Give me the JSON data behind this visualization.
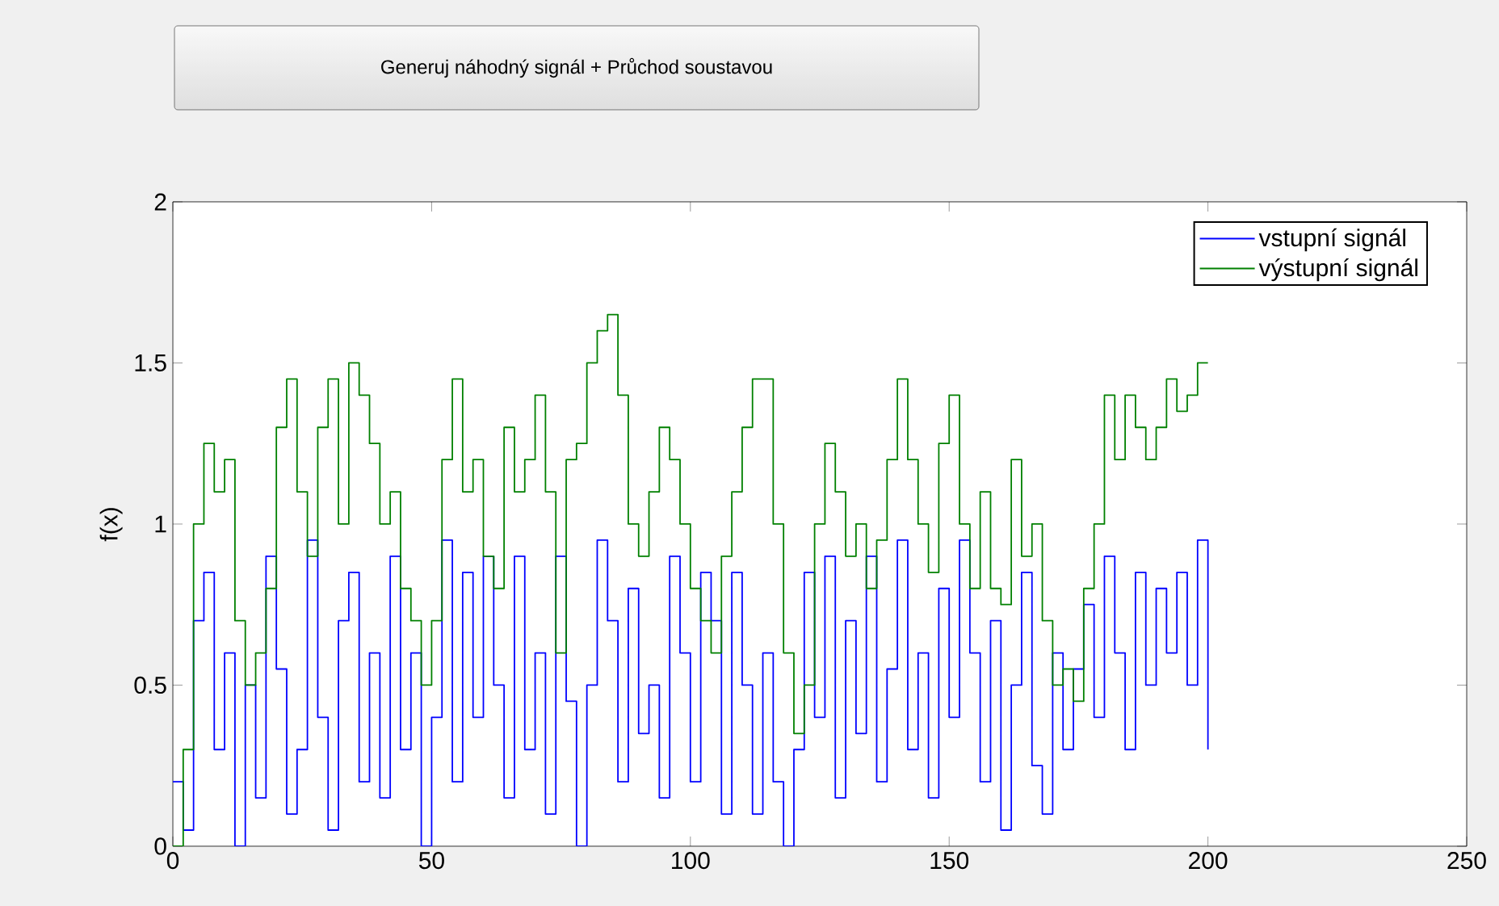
{
  "chart_data": {
    "type": "step",
    "title": "Generuj náhodný signál + Průchod soustavou",
    "ylabel": "f(x)",
    "x": [
      0,
      2,
      4,
      6,
      8,
      10,
      12,
      14,
      16,
      18,
      20,
      22,
      24,
      26,
      28,
      30,
      32,
      34,
      36,
      38,
      40,
      42,
      44,
      46,
      48,
      50,
      52,
      54,
      56,
      58,
      60,
      62,
      64,
      66,
      68,
      70,
      72,
      74,
      76,
      78,
      80,
      82,
      84,
      86,
      88,
      90,
      92,
      94,
      96,
      98,
      100,
      102,
      104,
      106,
      108,
      110,
      112,
      114,
      116,
      118,
      120,
      122,
      124,
      126,
      128,
      130,
      132,
      134,
      136,
      138,
      140,
      142,
      144,
      146,
      148,
      150,
      152,
      154,
      156,
      158,
      160,
      162,
      164,
      166,
      168,
      170,
      172,
      174,
      176,
      178,
      180,
      182,
      184,
      186,
      188,
      190,
      192,
      194,
      196,
      198,
      200
    ],
    "series": [
      {
        "name": "vstupní signál",
        "color": "#0000ff",
        "values": [
          0.2,
          0.05,
          0.7,
          0.85,
          0.3,
          0.6,
          0.0,
          0.5,
          0.15,
          0.9,
          0.55,
          0.1,
          0.3,
          0.95,
          0.4,
          0.05,
          0.7,
          0.85,
          0.2,
          0.6,
          0.15,
          0.9,
          0.3,
          0.6,
          0.0,
          0.4,
          0.95,
          0.2,
          0.85,
          0.4,
          0.9,
          0.5,
          0.15,
          0.9,
          0.3,
          0.6,
          0.1,
          0.9,
          0.45,
          0.0,
          0.5,
          0.95,
          0.7,
          0.2,
          0.8,
          0.35,
          0.5,
          0.15,
          0.9,
          0.6,
          0.2,
          0.85,
          0.7,
          0.1,
          0.85,
          0.5,
          0.1,
          0.6,
          0.2,
          0.0,
          0.3,
          0.85,
          0.4,
          0.9,
          0.15,
          0.7,
          0.35,
          0.9,
          0.2,
          0.55,
          0.95,
          0.3,
          0.6,
          0.15,
          0.8,
          0.4,
          0.95,
          0.6,
          0.2,
          0.7,
          0.05,
          0.5,
          0.85,
          0.25,
          0.1,
          0.6,
          0.3,
          0.55,
          0.75,
          0.4,
          0.9,
          0.6,
          0.3,
          0.85,
          0.5,
          0.8,
          0.6,
          0.85,
          0.5,
          0.95,
          0.3
        ]
      },
      {
        "name": "výstupní signál",
        "color": "#008000",
        "values": [
          0.0,
          0.3,
          1.0,
          1.25,
          1.1,
          1.2,
          0.7,
          0.5,
          0.6,
          0.8,
          1.3,
          1.45,
          1.1,
          0.9,
          1.3,
          1.45,
          1.0,
          1.5,
          1.4,
          1.25,
          1.0,
          1.1,
          0.8,
          0.7,
          0.5,
          0.7,
          1.2,
          1.45,
          1.1,
          1.2,
          0.9,
          0.8,
          1.3,
          1.1,
          1.2,
          1.4,
          1.1,
          0.6,
          1.2,
          1.25,
          1.5,
          1.6,
          1.65,
          1.4,
          1.0,
          0.9,
          1.1,
          1.3,
          1.2,
          1.0,
          0.8,
          0.7,
          0.6,
          0.9,
          1.1,
          1.3,
          1.45,
          1.45,
          1.0,
          0.6,
          0.35,
          0.5,
          1.0,
          1.25,
          1.1,
          0.9,
          1.0,
          0.8,
          0.95,
          1.2,
          1.45,
          1.2,
          1.0,
          0.85,
          1.25,
          1.4,
          1.0,
          0.8,
          1.1,
          0.8,
          0.75,
          1.2,
          0.9,
          1.0,
          0.7,
          0.5,
          0.55,
          0.45,
          0.8,
          1.0,
          1.4,
          1.2,
          1.4,
          1.3,
          1.2,
          1.3,
          1.45,
          1.35,
          1.4,
          1.5,
          1.5
        ]
      }
    ],
    "xlim": [
      0,
      250
    ],
    "ylim": [
      0,
      2
    ],
    "xticks": [
      0,
      50,
      100,
      150,
      200,
      250
    ],
    "yticks": [
      0,
      0.5,
      1,
      1.5,
      2
    ],
    "grid": false,
    "legend": "top right",
    "marker": "none",
    "line_style": "solid"
  }
}
